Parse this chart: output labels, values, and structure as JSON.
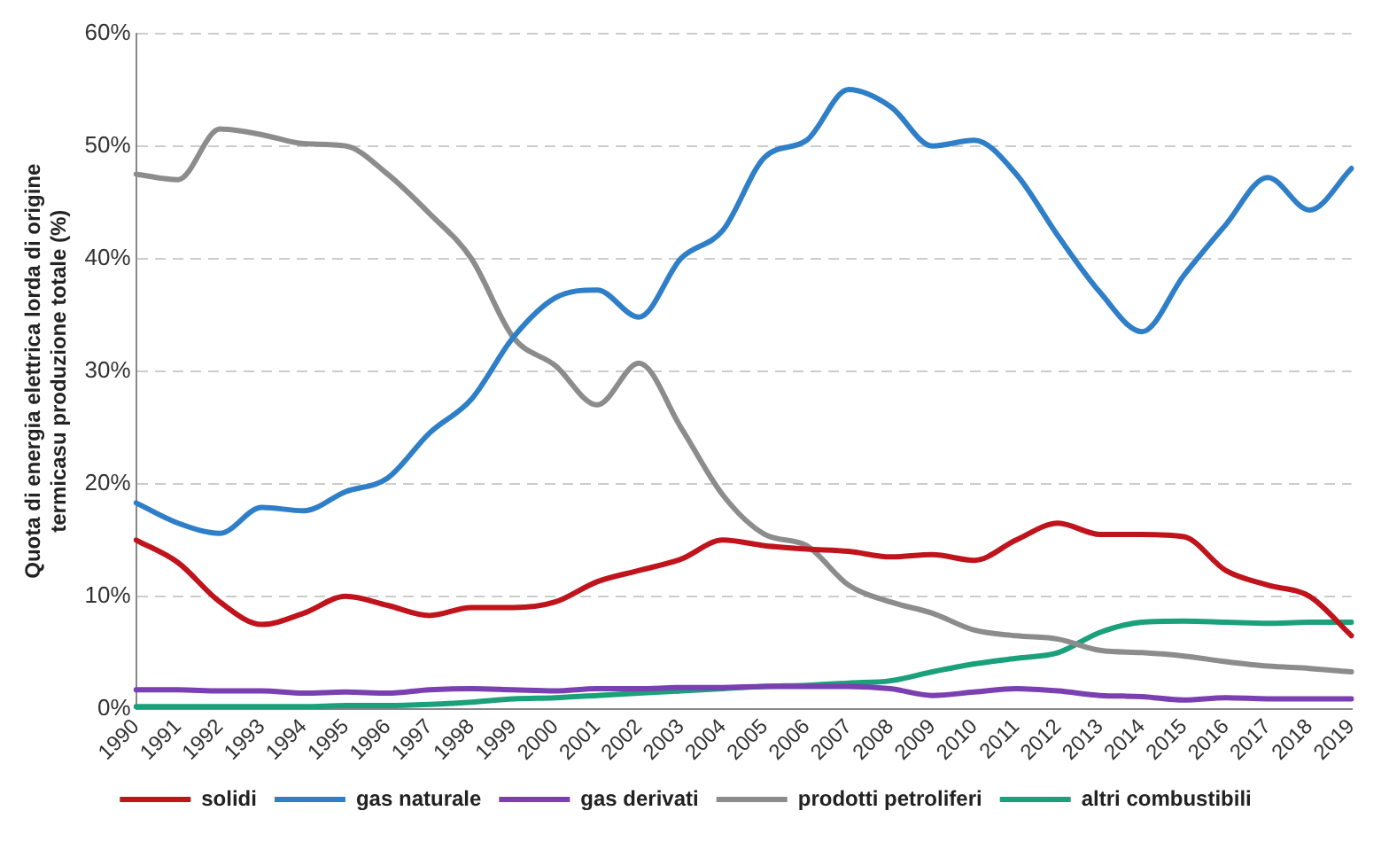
{
  "chart_data": {
    "type": "line",
    "ylabel": "Quota di energia elettrica lorda di origine\ntermicasu produzione totale (%)",
    "categories": [
      "1990",
      "1991",
      "1992",
      "1993",
      "1994",
      "1995",
      "1996",
      "1997",
      "1998",
      "1999",
      "2000",
      "2001",
      "2002",
      "2003",
      "2004",
      "2005",
      "2006",
      "2007",
      "2008",
      "2009",
      "2010",
      "2011",
      "2012",
      "2013",
      "2014",
      "2015",
      "2016",
      "2017",
      "2018",
      "2019"
    ],
    "series": [
      {
        "name": "solidi",
        "color": "#c0141c",
        "values": [
          15,
          13,
          9.5,
          7.5,
          8.5,
          10,
          9.2,
          8.3,
          9,
          9,
          9.5,
          11.3,
          12.3,
          13.3,
          15,
          14.5,
          14.2,
          14,
          13.5,
          13.7,
          13.2,
          15,
          16.5,
          15.5,
          15.5,
          15.3,
          12.3,
          11,
          10,
          6.5
        ]
      },
      {
        "name": "gas naturale",
        "color": "#2f7fc8",
        "values": [
          18.3,
          16.5,
          15.6,
          17.9,
          17.6,
          19.3,
          20.5,
          24.5,
          27.5,
          33,
          36.5,
          37.2,
          34.8,
          40,
          42.5,
          49,
          50.5,
          55,
          53.5,
          50,
          50.5,
          47.5,
          42,
          37,
          33.5,
          38.5,
          43,
          47.2,
          44.3,
          48
        ]
      },
      {
        "name": "gas derivati",
        "color": "#7a3fb0",
        "values": [
          1.7,
          1.7,
          1.6,
          1.6,
          1.4,
          1.5,
          1.4,
          1.7,
          1.8,
          1.7,
          1.6,
          1.8,
          1.8,
          1.9,
          1.9,
          2,
          2,
          2,
          1.8,
          1.2,
          1.5,
          1.8,
          1.6,
          1.2,
          1.1,
          0.8,
          1,
          0.9,
          0.9,
          0.9
        ]
      },
      {
        "name": "prodotti petroliferi",
        "color": "#8c8c8c",
        "values": [
          47.5,
          47,
          51.5,
          51,
          50.2,
          50,
          47.5,
          44,
          40,
          33,
          30.5,
          27,
          30.7,
          25,
          19,
          15.5,
          14.5,
          11,
          9.5,
          8.5,
          7,
          6.5,
          6.2,
          5.2,
          5,
          4.7,
          4.2,
          3.8,
          3.6,
          3.3
        ]
      },
      {
        "name": "altri combustibili",
        "color": "#1aa07a",
        "values": [
          0.2,
          0.2,
          0.2,
          0.2,
          0.2,
          0.3,
          0.3,
          0.4,
          0.6,
          0.9,
          1,
          1.2,
          1.4,
          1.6,
          1.8,
          2,
          2.1,
          2.3,
          2.5,
          3.3,
          4,
          4.5,
          5,
          6.8,
          7.7,
          7.8,
          7.7,
          7.6,
          7.7,
          7.7
        ]
      }
    ],
    "ylim": [
      0,
      60
    ],
    "yticks": [
      {
        "value": 0,
        "label": "0%"
      },
      {
        "value": 10,
        "label": "10%"
      },
      {
        "value": 20,
        "label": "20%"
      },
      {
        "value": 30,
        "label": "30%"
      },
      {
        "value": 40,
        "label": "40%"
      },
      {
        "value": 50,
        "label": "50%"
      },
      {
        "value": 60,
        "label": "60%"
      }
    ],
    "grid": "y",
    "legend": "bottom",
    "marker": "none",
    "line_style": "solid"
  }
}
